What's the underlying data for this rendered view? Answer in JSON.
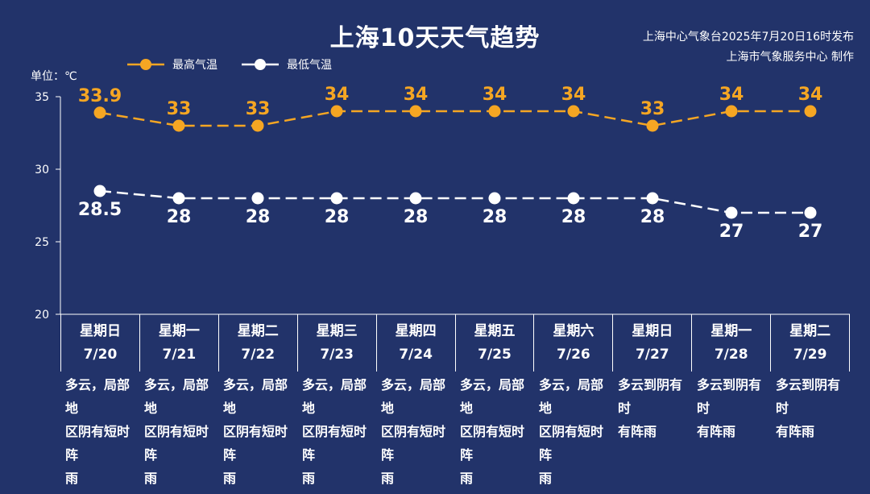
{
  "header": {
    "title": "上海10天天气趋势",
    "issuer_line1": "上海中心气象台2025年7月20日16时发布",
    "issuer_line2": "上海市气象服务中心 制作"
  },
  "unit_label": "单位：℃",
  "legend": {
    "high": "最高气温",
    "low": "最低气温"
  },
  "colors": {
    "background": "#22336a",
    "high": "#f5a623",
    "low": "#ffffff"
  },
  "chart_data": {
    "type": "line",
    "title": "上海10天天气趋势",
    "ylabel": "单位：℃",
    "ylim": [
      20,
      35
    ],
    "yticks": [
      20,
      25,
      30,
      35
    ],
    "categories": [
      "7/20",
      "7/21",
      "7/22",
      "7/23",
      "7/24",
      "7/25",
      "7/26",
      "7/27",
      "7/28",
      "7/29"
    ],
    "series": [
      {
        "name": "最高气温",
        "values": [
          33.9,
          33,
          33,
          34,
          34,
          34,
          34,
          33,
          34,
          34
        ]
      },
      {
        "name": "最低气温",
        "values": [
          28.5,
          28,
          28,
          28,
          28,
          28,
          28,
          28,
          27,
          27
        ]
      }
    ]
  },
  "days": [
    {
      "weekday": "星期日",
      "date": "7/20",
      "weather": "多云，局部地区阴有短时阵雨"
    },
    {
      "weekday": "星期一",
      "date": "7/21",
      "weather": "多云，局部地区阴有短时阵雨"
    },
    {
      "weekday": "星期二",
      "date": "7/22",
      "weather": "多云，局部地区阴有短时阵雨"
    },
    {
      "weekday": "星期三",
      "date": "7/23",
      "weather": "多云，局部地区阴有短时阵雨"
    },
    {
      "weekday": "星期四",
      "date": "7/24",
      "weather": "多云，局部地区阴有短时阵雨"
    },
    {
      "weekday": "星期五",
      "date": "7/25",
      "weather": "多云，局部地区阴有短时阵雨"
    },
    {
      "weekday": "星期六",
      "date": "7/26",
      "weather": "多云，局部地区阴有短时阵雨"
    },
    {
      "weekday": "星期日",
      "date": "7/27",
      "weather": "多云到阴有时有阵雨"
    },
    {
      "weekday": "星期一",
      "date": "7/28",
      "weather": "多云到阴有时有阵雨"
    },
    {
      "weekday": "星期二",
      "date": "7/29",
      "weather": "多云到阴有时有阵雨"
    }
  ]
}
